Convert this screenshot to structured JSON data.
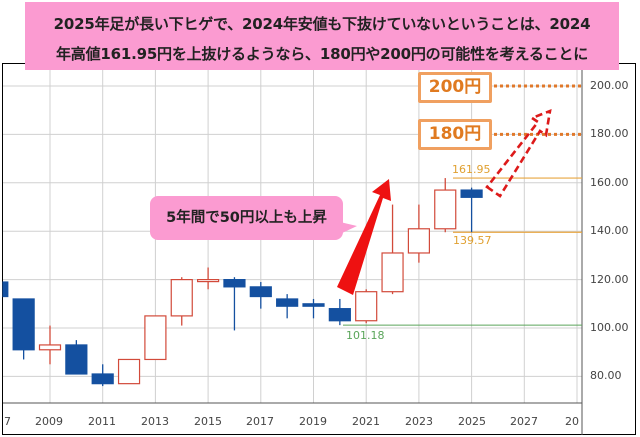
{
  "title": {
    "line1": "2025年足が長い下ヒゲで、2024年安値も下抜けていないということは、2024",
    "line2": "年高値161.95円を上抜けるようなら、180円や200円の可能性を考えることに"
  },
  "callout": {
    "text": "5年間で50円以上も上昇"
  },
  "targets": [
    {
      "label": "200円",
      "value": 200
    },
    {
      "label": "180円",
      "value": 180
    }
  ],
  "annotations": {
    "high_2024": "161.95",
    "low_2024": "139.57",
    "low_2020": "101.18"
  },
  "colors": {
    "up": "#d24a3a",
    "down": "#1450a0",
    "target_line": "#e0782a",
    "level_line": "#e8a640",
    "support_line": "#5aa55a",
    "callout_bg": "#fb9bd1",
    "arrow": "#ee1111"
  },
  "chart_data": {
    "type": "candlestick",
    "title": "2025年足が長い下ヒゲで、2024年安値も下抜けていないということは、2024年高値161.95円を上抜けるようなら、180円や200円の可能性を考えることに",
    "xlabel": "",
    "ylabel": "",
    "y_axis_position": "right",
    "ylim": [
      72,
      212
    ],
    "grid": true,
    "x_tick_labels": [
      "7",
      "2009",
      "2011",
      "2013",
      "2015",
      "2017",
      "2019",
      "2021",
      "2023",
      "2025",
      "2027",
      "20"
    ],
    "y_tick_labels": [
      "80.00",
      "100.00",
      "120.00",
      "140.00",
      "160.00",
      "180.00",
      "200.00"
    ],
    "candles": [
      {
        "year": 2007,
        "open": 119,
        "high": 124,
        "low": 113,
        "close": 113
      },
      {
        "year": 2008,
        "open": 112,
        "high": 112,
        "low": 87,
        "close": 91
      },
      {
        "year": 2009,
        "open": 91,
        "high": 101,
        "low": 85,
        "close": 93
      },
      {
        "year": 2010,
        "open": 93,
        "high": 95,
        "low": 81,
        "close": 81
      },
      {
        "year": 2011,
        "open": 81,
        "high": 85,
        "low": 76,
        "close": 77
      },
      {
        "year": 2012,
        "open": 77,
        "high": 87,
        "low": 77,
        "close": 87
      },
      {
        "year": 2013,
        "open": 87,
        "high": 105,
        "low": 87,
        "close": 105
      },
      {
        "year": 2014,
        "open": 105,
        "high": 121,
        "low": 101,
        "close": 120
      },
      {
        "year": 2015,
        "open": 120,
        "high": 125,
        "low": 116,
        "close": 120
      },
      {
        "year": 2016,
        "open": 120,
        "high": 121,
        "low": 99,
        "close": 117
      },
      {
        "year": 2017,
        "open": 117,
        "high": 119,
        "low": 108,
        "close": 113
      },
      {
        "year": 2018,
        "open": 112,
        "high": 114,
        "low": 104,
        "close": 109
      },
      {
        "year": 2019,
        "open": 110,
        "high": 112,
        "low": 104,
        "close": 109
      },
      {
        "year": 2020,
        "open": 108,
        "high": 112,
        "low": 101.18,
        "close": 103
      },
      {
        "year": 2021,
        "open": 103,
        "high": 116,
        "low": 102,
        "close": 115
      },
      {
        "year": 2022,
        "open": 115,
        "high": 151,
        "low": 114,
        "close": 131
      },
      {
        "year": 2023,
        "open": 131,
        "high": 151,
        "low": 127,
        "close": 141
      },
      {
        "year": 2024,
        "open": 141,
        "high": 161.95,
        "low": 139.57,
        "close": 157
      },
      {
        "year": 2025,
        "open": 157,
        "high": 158,
        "low": 139.6,
        "close": 154
      }
    ],
    "horizontal_lines": [
      {
        "value": 200,
        "style": "dotted",
        "label": "200円"
      },
      {
        "value": 180,
        "style": "dotted",
        "label": "180円"
      },
      {
        "value": 161.95,
        "style": "solid",
        "label": "161.95"
      },
      {
        "value": 139.57,
        "style": "solid",
        "label": "139.57"
      },
      {
        "value": 101.18,
        "style": "solid",
        "label": "101.18"
      }
    ],
    "annotations": [
      "5年間で50円以上も上昇",
      "200円",
      "180円"
    ]
  }
}
